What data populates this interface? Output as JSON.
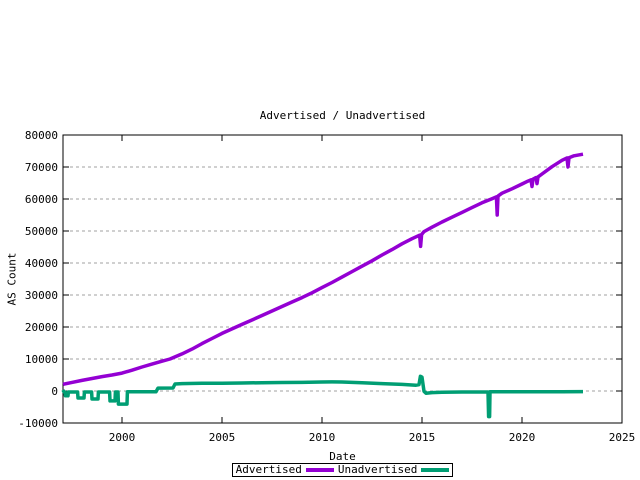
{
  "chart_data": {
    "type": "line",
    "title": "Advertised / Unadvertised",
    "xlabel": "Date",
    "ylabel": "AS Count",
    "xlim": [
      1997.05,
      2025
    ],
    "ylim": [
      -10000,
      80000
    ],
    "grid": "horizontal-dashed-only",
    "grid_color": "#a0a0a0",
    "axis_color": "#000000",
    "legend_position": "bottom-center",
    "x_ticks": [
      2000,
      2005,
      2010,
      2015,
      2020,
      2025
    ],
    "x_tick_labels": [
      "2000",
      "2005",
      "2010",
      "2015",
      "2020",
      "2025"
    ],
    "y_ticks": [
      -10000,
      0,
      10000,
      20000,
      30000,
      40000,
      50000,
      60000,
      70000,
      80000
    ],
    "y_tick_labels": [
      "-10000",
      "0",
      "10000",
      "20000",
      "30000",
      "40000",
      "50000",
      "60000",
      "70000",
      "80000"
    ],
    "series": [
      {
        "name": "Advertised",
        "color": "#9400d3",
        "points": [
          [
            1997.05,
            2100
          ],
          [
            1997.5,
            2700
          ],
          [
            1998,
            3300
          ],
          [
            1998.5,
            3900
          ],
          [
            1999,
            4500
          ],
          [
            1999.5,
            5000
          ],
          [
            2000,
            5600
          ],
          [
            2000.5,
            6500
          ],
          [
            2001,
            7500
          ],
          [
            2001.5,
            8400
          ],
          [
            2002,
            9300
          ],
          [
            2002.4,
            10000
          ],
          [
            2003,
            11600
          ],
          [
            2003.5,
            13100
          ],
          [
            2004,
            14800
          ],
          [
            2004.5,
            16400
          ],
          [
            2005,
            18000
          ],
          [
            2005.5,
            19400
          ],
          [
            2006,
            20800
          ],
          [
            2006.5,
            22200
          ],
          [
            2007,
            23600
          ],
          [
            2007.5,
            25000
          ],
          [
            2008,
            26400
          ],
          [
            2008.5,
            27800
          ],
          [
            2009,
            29200
          ],
          [
            2009.5,
            30700
          ],
          [
            2010,
            32300
          ],
          [
            2010.5,
            33900
          ],
          [
            2011,
            35600
          ],
          [
            2011.5,
            37300
          ],
          [
            2012,
            39000
          ],
          [
            2012.5,
            40700
          ],
          [
            2013,
            42500
          ],
          [
            2013.5,
            44200
          ],
          [
            2014,
            46000
          ],
          [
            2014.5,
            47600
          ],
          [
            2014.88,
            48700
          ],
          [
            2014.93,
            45200
          ],
          [
            2014.98,
            48900
          ],
          [
            2015.1,
            49800
          ],
          [
            2015.5,
            51200
          ],
          [
            2016,
            52800
          ],
          [
            2016.5,
            54300
          ],
          [
            2017,
            55800
          ],
          [
            2017.5,
            57300
          ],
          [
            2018,
            58800
          ],
          [
            2018.5,
            60100
          ],
          [
            2018.72,
            60700
          ],
          [
            2018.76,
            55000
          ],
          [
            2018.8,
            60900
          ],
          [
            2019,
            61800
          ],
          [
            2019.5,
            63200
          ],
          [
            2020,
            64700
          ],
          [
            2020.3,
            65600
          ],
          [
            2020.45,
            66000
          ],
          [
            2020.5,
            63900
          ],
          [
            2020.55,
            66200
          ],
          [
            2020.7,
            66700
          ],
          [
            2020.75,
            64800
          ],
          [
            2020.8,
            66900
          ],
          [
            2021,
            67800
          ],
          [
            2021.5,
            70100
          ],
          [
            2022,
            72100
          ],
          [
            2022.25,
            72800
          ],
          [
            2022.3,
            70000
          ],
          [
            2022.35,
            72900
          ],
          [
            2022.6,
            73500
          ],
          [
            2023.05,
            74000
          ]
        ]
      },
      {
        "name": "Unadvertised",
        "color": "#009e73",
        "points": [
          [
            1997.05,
            300
          ],
          [
            1997.1,
            -300
          ],
          [
            1997.15,
            -300
          ],
          [
            1997.17,
            -1500
          ],
          [
            1997.3,
            -1500
          ],
          [
            1997.32,
            -300
          ],
          [
            1997.78,
            -300
          ],
          [
            1997.8,
            -2200
          ],
          [
            1998.1,
            -2200
          ],
          [
            1998.12,
            -300
          ],
          [
            1998.48,
            -300
          ],
          [
            1998.5,
            -2500
          ],
          [
            1998.8,
            -2500
          ],
          [
            1998.82,
            -300
          ],
          [
            1999.38,
            -300
          ],
          [
            1999.4,
            -3100
          ],
          [
            1999.65,
            -3100
          ],
          [
            1999.67,
            -300
          ],
          [
            1999.8,
            -300
          ],
          [
            1999.82,
            -4100
          ],
          [
            2000.25,
            -4100
          ],
          [
            2000.27,
            -250
          ],
          [
            2001.7,
            -250
          ],
          [
            2001.8,
            900
          ],
          [
            2002.55,
            950
          ],
          [
            2002.65,
            2200
          ],
          [
            2003,
            2300
          ],
          [
            2004,
            2400
          ],
          [
            2005,
            2450
          ],
          [
            2006,
            2500
          ],
          [
            2007,
            2600
          ],
          [
            2008,
            2650
          ],
          [
            2009,
            2700
          ],
          [
            2010,
            2800
          ],
          [
            2010.5,
            2850
          ],
          [
            2011,
            2800
          ],
          [
            2012,
            2550
          ],
          [
            2013,
            2300
          ],
          [
            2014,
            2050
          ],
          [
            2014.7,
            1800
          ],
          [
            2014.85,
            2000
          ],
          [
            2014.92,
            4600
          ],
          [
            2015.0,
            4300
          ],
          [
            2015.1,
            -100
          ],
          [
            2015.2,
            -700
          ],
          [
            2015.5,
            -500
          ],
          [
            2016,
            -400
          ],
          [
            2017,
            -320
          ],
          [
            2018.3,
            -300
          ],
          [
            2018.33,
            -8000
          ],
          [
            2018.38,
            -8000
          ],
          [
            2018.4,
            -250
          ],
          [
            2019,
            -250
          ],
          [
            2020,
            -230
          ],
          [
            2021,
            -220
          ],
          [
            2022,
            -210
          ],
          [
            2023.05,
            -200
          ]
        ]
      }
    ]
  }
}
